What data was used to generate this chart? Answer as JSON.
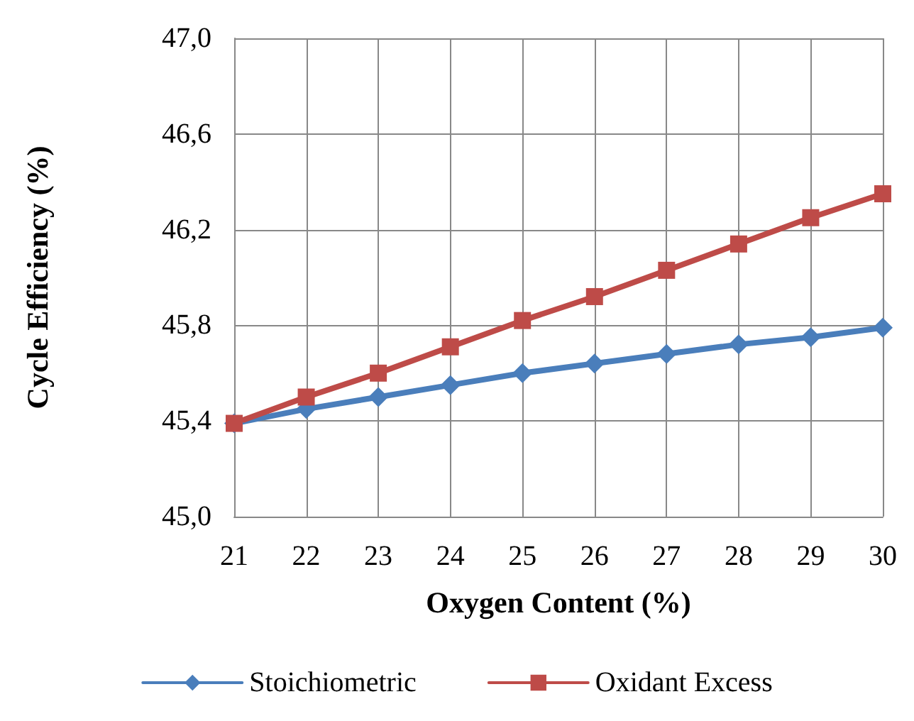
{
  "chart_data": {
    "type": "line",
    "xlabel": "Oxygen Content (%)",
    "ylabel": "Cycle Efficiency (%)",
    "x": [
      21,
      22,
      23,
      24,
      25,
      26,
      27,
      28,
      29,
      30
    ],
    "xlim": [
      21,
      30
    ],
    "xticks": [
      21,
      22,
      23,
      24,
      25,
      26,
      27,
      28,
      29,
      30
    ],
    "ylim": [
      45,
      47
    ],
    "yticks": [
      {
        "value": 45,
        "label": "45,0"
      },
      {
        "value": 45.4,
        "label": "45,4"
      },
      {
        "value": 45.8,
        "label": "45,8"
      },
      {
        "value": 46.2,
        "label": "46,2"
      },
      {
        "value": 46.6,
        "label": "46,6"
      },
      {
        "value": 47,
        "label": "47,0"
      }
    ],
    "grid": true,
    "legend": "bottom",
    "line_style": "solid",
    "series": [
      {
        "name": "Stoichiometric",
        "color": "#4a7ebb",
        "marker": "diamond",
        "values": [
          45.39,
          45.45,
          45.5,
          45.55,
          45.6,
          45.64,
          45.68,
          45.72,
          45.75,
          45.79
        ]
      },
      {
        "name": "Oxidant Excess",
        "color": "#be4b48",
        "marker": "square",
        "values": [
          45.39,
          45.5,
          45.6,
          45.71,
          45.82,
          45.92,
          46.03,
          46.14,
          46.25,
          46.35
        ]
      }
    ]
  }
}
